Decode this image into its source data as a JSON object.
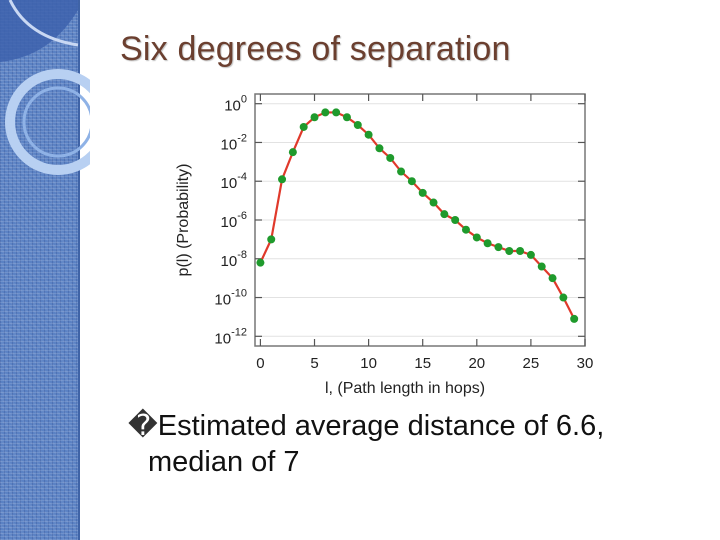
{
  "slide": {
    "title": "Six degrees of separation",
    "bullet_marker": "�",
    "bullet_line1": "Estimated average distance of 6.6,",
    "bullet_line2": "median of 7",
    "sidebar_color": "#5b82c4",
    "title_color": "#6b3f2f"
  },
  "chart_data": {
    "type": "line",
    "title": "",
    "xlabel": "l, (Path length in hops)",
    "ylabel": "p(l) (Probability)",
    "xlim": [
      -0.5,
      30
    ],
    "ylim": [
      -12.5,
      0.5
    ],
    "y_scale": "log10",
    "x_ticks": [
      0,
      5,
      10,
      15,
      20,
      25,
      30
    ],
    "y_ticks": [
      0,
      -2,
      -4,
      -6,
      -8,
      -10,
      -12
    ],
    "y_tick_labels": [
      {
        "base": "10",
        "exp": "0"
      },
      {
        "base": "10",
        "exp": "-2"
      },
      {
        "base": "10",
        "exp": "-4"
      },
      {
        "base": "10",
        "exp": "-6"
      },
      {
        "base": "10",
        "exp": "-8"
      },
      {
        "base": "10",
        "exp": "-10"
      },
      {
        "base": "10",
        "exp": "-12"
      }
    ],
    "line_color": "#e0392b",
    "marker_color": "#1f9a2c",
    "series": [
      {
        "x": [
          0,
          1,
          2,
          3,
          4,
          5,
          6,
          7,
          8,
          9,
          10,
          11,
          12,
          13,
          14,
          15,
          16,
          17,
          18,
          19,
          20,
          21,
          22,
          23,
          24,
          25,
          26,
          27,
          28,
          29
        ],
        "y": [
          -8.2,
          -7.0,
          -3.9,
          -2.5,
          -1.2,
          -0.7,
          -0.45,
          -0.45,
          -0.7,
          -1.1,
          -1.6,
          -2.3,
          -2.8,
          -3.5,
          -4.0,
          -4.6,
          -5.1,
          -5.7,
          -6.0,
          -6.5,
          -6.9,
          -7.2,
          -7.4,
          -7.6,
          -7.6,
          -7.8,
          -8.4,
          -9.0,
          -10.0,
          -11.1
        ]
      }
    ]
  }
}
